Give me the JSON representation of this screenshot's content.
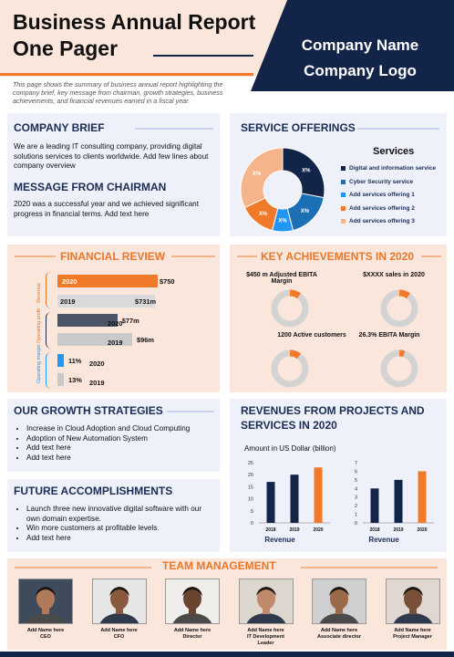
{
  "header": {
    "title_line1": "Business Annual Report",
    "title_line2": "One Pager",
    "company_name": "Company Name",
    "company_logo": "Company Logo",
    "intro": "This page shows the summary of business annual report highlighting the company brief, key message from chairman, growth strategies, business achievements, and financial revenues earned in a fiscal year."
  },
  "company_brief": {
    "title": "COMPANY BRIEF",
    "text": "We are a leading IT consulting company, providing digital solutions services to clients worldwide. Add few lines about company overview"
  },
  "chairman": {
    "title": "MESSAGE FROM CHAIRMAN",
    "text": "2020 was a successful year and we achieved significant progress in financial terms. Add text here"
  },
  "services": {
    "title": "SERVICE OFFERINGS",
    "chart_title": "Services",
    "items": [
      {
        "label": "Digital and information service",
        "color": "#122448",
        "value_label": "X%"
      },
      {
        "label": "Cyber Security service",
        "color": "#1b6fb5",
        "value_label": "X%"
      },
      {
        "label": "Add services offering 1",
        "color": "#2196f3",
        "value_label": "X%"
      },
      {
        "label": "Add services offering 2",
        "color": "#f07a2a",
        "value_label": "X%"
      },
      {
        "label": "Add services offering 3",
        "color": "#f5b48a",
        "value_label": "X%"
      }
    ]
  },
  "financial": {
    "title": "FINANCIAL REVIEW",
    "groups": [
      {
        "name": "Revenue",
        "rows": [
          {
            "year": "2020",
            "value": 750,
            "label": "$750",
            "color": "#f07a2a"
          },
          {
            "year": "2019",
            "value": 731,
            "label": "$731m",
            "color": "#d9d9d9"
          }
        ]
      },
      {
        "name": "Operating profit",
        "rows": [
          {
            "year": "2020",
            "value": 77,
            "label": "$77m",
            "color": "#4a5568"
          },
          {
            "year": "2019",
            "value": 96,
            "label": "$96m",
            "color": "#c9c9c9"
          }
        ]
      },
      {
        "name": "Operating margin",
        "rows": [
          {
            "year": "2020",
            "value": 11,
            "label": "11%",
            "color": "#2196f3"
          },
          {
            "year": "2019",
            "value": 13,
            "label": "13%",
            "color": "#c9c9c9"
          }
        ]
      }
    ]
  },
  "achievements": {
    "title": "KEY ACHIEVEMENTS IN 2020",
    "items": [
      {
        "label": "$450 m Adjusted EBITA Margin",
        "fraction": 0.1
      },
      {
        "label": "$XXXX sales in 2020",
        "fraction": 0.1
      },
      {
        "label": "1200 Active customers",
        "fraction": 0.1
      },
      {
        "label": "26.3% EBITA Margin",
        "fraction": 0.05
      }
    ]
  },
  "growth": {
    "title": "OUR GROWTH STRATEGIES",
    "items": [
      "Increase in Cloud Adoption and Cloud Computing",
      "Adoption of New Automation System",
      "Add text here",
      "Add text here"
    ]
  },
  "future": {
    "title": "FUTURE ACCOMPLISHMENTS",
    "items": [
      "Launch three new innovative digital software with our own domain expertise.",
      "Win more customers at profitable levels.",
      "Add text here"
    ]
  },
  "revenues": {
    "title_line1": "REVENUES FROM PROJECTS AND",
    "title_line2": "SERVICES IN 2020",
    "subtitle": "Amount in US Dollar (billion)"
  },
  "chart_data": [
    {
      "type": "bar",
      "categories": [
        "2018",
        "2019",
        "2020"
      ],
      "values": [
        17,
        20,
        23
      ],
      "xlabel": "Revenue",
      "ylim": [
        0,
        25
      ],
      "yticks": [
        0,
        5,
        10,
        15,
        20,
        25
      ],
      "colors": [
        "#122448",
        "#122448",
        "#f07a2a"
      ]
    },
    {
      "type": "bar",
      "categories": [
        "2018",
        "2019",
        "2020"
      ],
      "values": [
        4,
        5,
        6
      ],
      "xlabel": "Revenue",
      "ylim": [
        0,
        7
      ],
      "yticks": [
        0,
        1,
        2,
        3,
        4,
        5,
        6,
        7
      ],
      "colors": [
        "#122448",
        "#122448",
        "#f07a2a"
      ]
    }
  ],
  "team": {
    "title": "TEAM MANAGEMENT",
    "members": [
      {
        "name": "Add Name here",
        "role": "CEO"
      },
      {
        "name": "Add Name here",
        "role": "CFO"
      },
      {
        "name": "Add Name here",
        "role": "Director"
      },
      {
        "name": "Add Name here",
        "role": "IT Development Leader"
      },
      {
        "name": "Add Name here",
        "role": "Associate director"
      },
      {
        "name": "Add Name here",
        "role": "Project Manager"
      }
    ]
  }
}
